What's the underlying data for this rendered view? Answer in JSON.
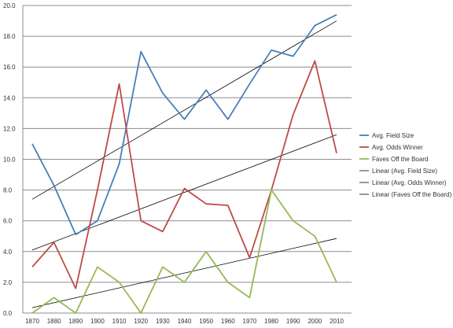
{
  "chart_data": {
    "type": "line",
    "title": "",
    "xlabel": "",
    "ylabel": "",
    "ylim": [
      0,
      20
    ],
    "yticks": [
      "0.0",
      "2.0",
      "4.0",
      "6.0",
      "8.0",
      "10.0",
      "12.0",
      "14.0",
      "16.0",
      "18.0",
      "20.0"
    ],
    "categories": [
      "1870",
      "1880",
      "1890",
      "1900",
      "1910",
      "1920",
      "1930",
      "1940",
      "1950",
      "1960",
      "1970",
      "1980",
      "1990",
      "2000",
      "2010"
    ],
    "grid": "horizontal",
    "legend_position": "right",
    "series": [
      {
        "name": "Avg. Field Size",
        "color": "#4a7ebb",
        "values": [
          11.0,
          8.3,
          5.1,
          6.0,
          9.7,
          17.0,
          14.3,
          12.6,
          14.5,
          12.6,
          14.9,
          17.1,
          16.7,
          18.7,
          19.4
        ]
      },
      {
        "name": "Avg. Odds Winner",
        "color": "#be4b48",
        "values": [
          3.0,
          4.6,
          1.6,
          8.0,
          14.9,
          6.0,
          5.3,
          8.1,
          7.1,
          7.0,
          3.6,
          8.0,
          12.9,
          16.4,
          10.4
        ]
      },
      {
        "name": "Faves Off the Board",
        "color": "#98b954",
        "values": [
          0,
          1,
          0,
          3,
          2,
          0,
          3,
          2,
          4,
          2,
          1,
          8,
          6,
          5,
          2
        ]
      }
    ],
    "trendlines": [
      {
        "name": "Linear (Avg. Field Size)",
        "color": "#000000",
        "values": [
          7.4,
          19.0
        ]
      },
      {
        "name": "Linear (Avg. Odds Winner)",
        "color": "#000000",
        "values": [
          4.1,
          11.6
        ]
      },
      {
        "name": "Linear (Faves Off the Board)",
        "color": "#000000",
        "values": [
          0.35,
          4.85
        ]
      }
    ]
  }
}
